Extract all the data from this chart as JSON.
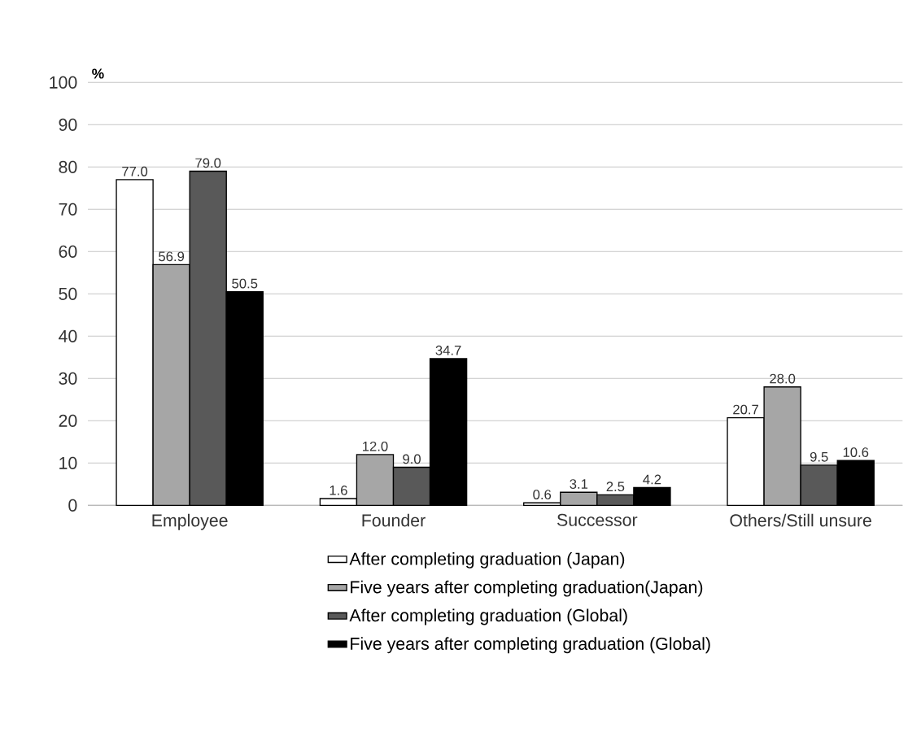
{
  "chart_data": {
    "type": "bar",
    "ylabel": "%",
    "categories": [
      "Employee",
      "Founder",
      "Successor",
      "Others/Still unsure"
    ],
    "series": [
      {
        "name": "After completing graduation (Japan)",
        "color": "#ffffff",
        "values": [
          77.0,
          1.6,
          0.6,
          20.7
        ],
        "value_labels": [
          "77.0",
          "1.6",
          "0.6",
          "20.7"
        ]
      },
      {
        "name": "Five years after completing graduation(Japan)",
        "color": "#a6a6a6",
        "values": [
          56.9,
          12.0,
          3.1,
          28.0
        ],
        "value_labels": [
          "56.9",
          "12.0",
          "3.1",
          "28.0"
        ]
      },
      {
        "name": "After completing graduation (Global)",
        "color": "#595959",
        "values": [
          79.0,
          9.0,
          2.5,
          9.5
        ],
        "value_labels": [
          "79.0",
          "9.0",
          "2.5",
          "9.5"
        ]
      },
      {
        "name": "Five years after completing graduation (Global)",
        "color": "#000000",
        "values": [
          50.5,
          34.7,
          4.2,
          10.6
        ],
        "value_labels": [
          "50.5",
          "34.7",
          "4.2",
          "10.6"
        ]
      }
    ],
    "ylim": [
      0,
      100
    ],
    "yticks": [
      0,
      10,
      20,
      30,
      40,
      50,
      60,
      70,
      80,
      90,
      100
    ],
    "grid": "y",
    "legend": "bottom"
  }
}
